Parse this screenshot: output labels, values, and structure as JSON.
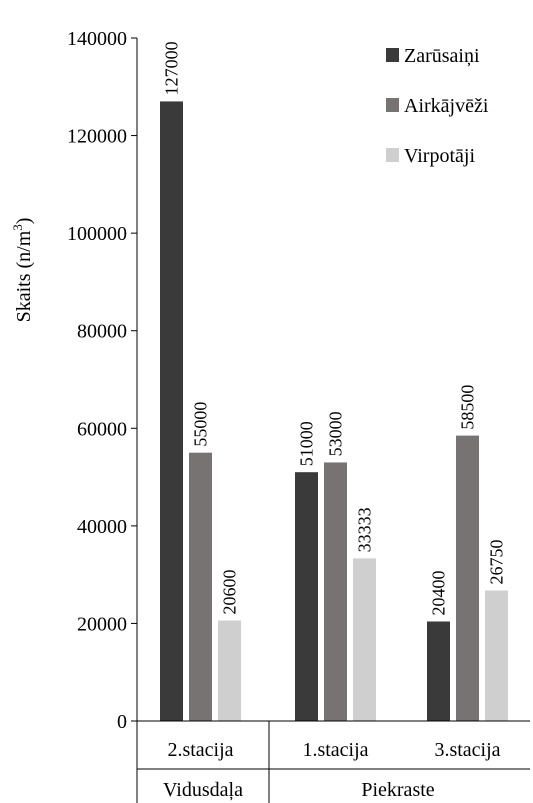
{
  "chart_data": {
    "type": "bar",
    "ylabel": "Skaits (n/m",
    "ylabel_sup": "3",
    "ylabel_close": ")",
    "ylim": [
      0,
      140000
    ],
    "yticks": [
      0,
      20000,
      40000,
      60000,
      80000,
      100000,
      120000,
      140000
    ],
    "grid": false,
    "legend_position": "top-right",
    "categories": [
      "2.stacija",
      "1.stacija",
      "3.stacija"
    ],
    "groups": [
      {
        "label": "Vidusdaļa",
        "categories": [
          "2.stacija"
        ]
      },
      {
        "label": "Piekraste",
        "categories": [
          "1.stacija",
          "3.stacija"
        ]
      }
    ],
    "series": [
      {
        "name": "Zarūsaiņi",
        "color": "#3a3a3a",
        "values": [
          127000,
          51000,
          20400
        ]
      },
      {
        "name": "Airkājvēži",
        "color": "#777373",
        "values": [
          55000,
          53000,
          58500
        ]
      },
      {
        "name": "Virpotāji",
        "color": "#d0cfcf",
        "values": [
          20600,
          33333,
          26750
        ]
      }
    ]
  }
}
